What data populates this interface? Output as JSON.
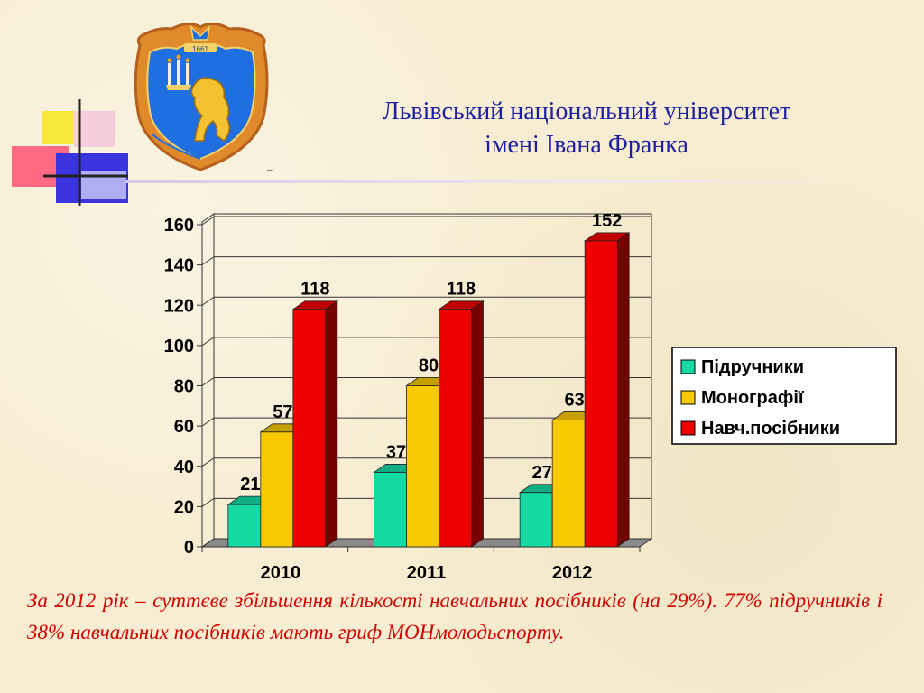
{
  "header": {
    "line1": "Львівський національний університет",
    "line2": "імені Івана Франка"
  },
  "logo": {
    "emblem_year": "1661"
  },
  "colors": {
    "title": "#1e1ea0",
    "footnote": "#d30000",
    "series": [
      "#14d9a2",
      "#f8c800",
      "#ee0000"
    ]
  },
  "chart_data": {
    "type": "bar",
    "title": "",
    "xlabel": "",
    "ylabel": "",
    "categories": [
      "2010",
      "2011",
      "2012"
    ],
    "series": [
      {
        "name": "Підручники",
        "values": [
          21,
          37,
          27
        ]
      },
      {
        "name": "Монографії",
        "values": [
          57,
          80,
          63
        ]
      },
      {
        "name": "Навч.посібники",
        "values": [
          118,
          118,
          152
        ]
      }
    ],
    "data_labels": [
      [
        "21",
        "37",
        "27"
      ],
      [
        "57",
        "80",
        "63"
      ],
      [
        "118",
        "118",
        "152"
      ]
    ],
    "ylim": [
      0,
      160
    ],
    "yticks": [
      0,
      20,
      40,
      60,
      80,
      100,
      120,
      140,
      160
    ],
    "ytick_labels": [
      "0",
      "20",
      "40",
      "60",
      "80",
      "100",
      "120",
      "140",
      "160"
    ],
    "grid": true,
    "legend_position": "right",
    "style": "3d-clustered-column"
  },
  "footnote": "За 2012 рік – суттєве збільшення кількості навчальних посібників (на 29%). 77% підручників і 38% навчальних посібників мають гриф МОНмолодьспорту."
}
